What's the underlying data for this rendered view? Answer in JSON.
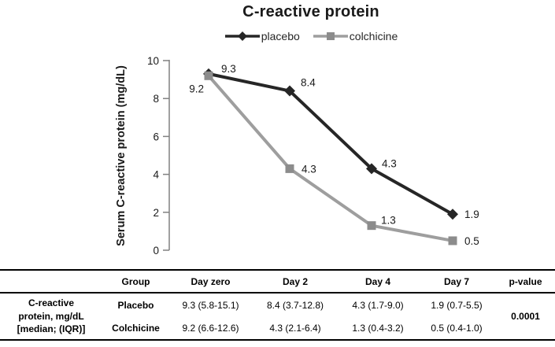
{
  "chart_data": {
    "type": "line",
    "title": "C-reactive protein",
    "ylabel": "Serum C-reactive protein (mg/dL)",
    "x_categories": [
      "Day zero",
      "Day 2",
      "Day 4",
      "Day 7"
    ],
    "ylim": [
      0,
      10
    ],
    "yticks": [
      0,
      2,
      4,
      6,
      8,
      10
    ],
    "grid": false,
    "legend_position": "top",
    "axis_color": "#808080",
    "series": [
      {
        "name": "placebo",
        "marker": "diamond",
        "color": "#262626",
        "values": [
          9.3,
          8.4,
          4.3,
          1.9
        ]
      },
      {
        "name": "colchicine",
        "marker": "square",
        "color": "#8c8c8c",
        "line_color": "#9e9e9e",
        "values": [
          9.2,
          4.3,
          1.3,
          0.5
        ]
      }
    ]
  },
  "table": {
    "headers": [
      "",
      "Group",
      "Day zero",
      "Day 2",
      "Day 4",
      "Day 7",
      "p-value"
    ],
    "row_label": "C-reactive\nprotein, mg/dL\n[median; (IQR)]",
    "rows": [
      {
        "group": "Placebo",
        "values": [
          "9.3 (5.8-15.1)",
          "8.4 (3.7-12.8)",
          "4.3 (1.7-9.0)",
          "1.9 (0.7-5.5)"
        ]
      },
      {
        "group": "Colchicine",
        "values": [
          "9.2 (6.6-12.6)",
          "4.3 (2.1-6.4)",
          "1.3 (0.4-3.2)",
          "0.5 (0.4-1.0)"
        ]
      }
    ],
    "p_value": "0.0001"
  }
}
